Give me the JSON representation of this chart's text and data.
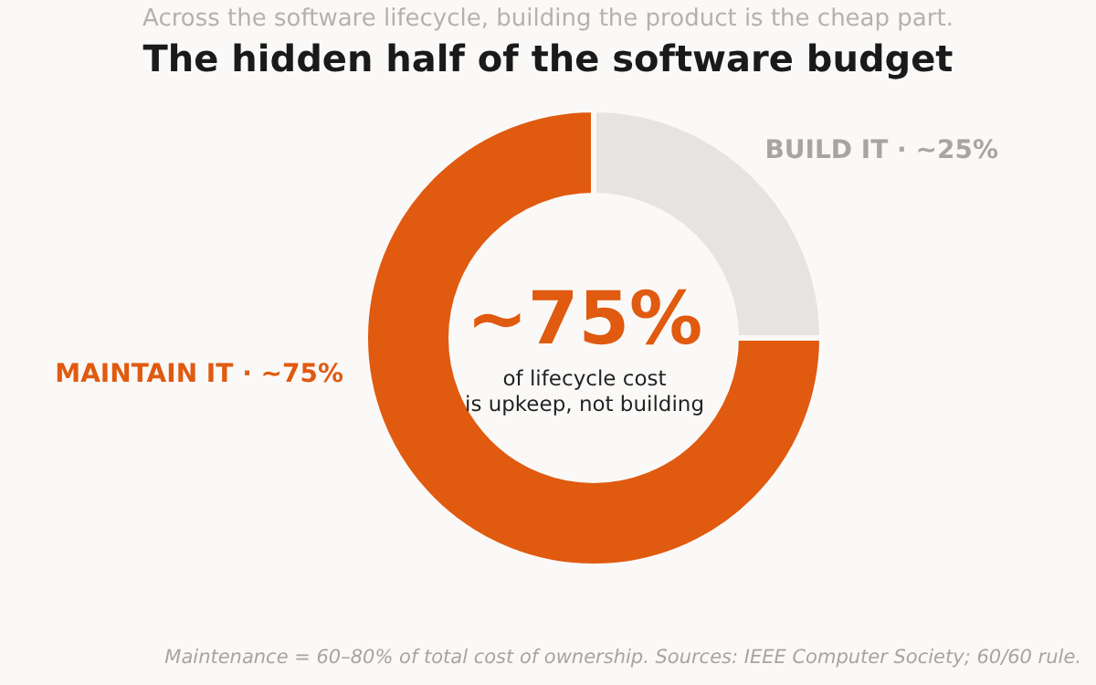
{
  "chart_data": {
    "type": "donut",
    "title": "The hidden half of the software budget",
    "subtitle": "Across the software lifecycle, building the product is the cheap part.",
    "categories": [
      "BUILD IT  ·",
      "MAINTAIN IT  ·"
    ],
    "values": [
      25,
      75
    ],
    "colors": [
      "#e6e4e1",
      "#e05a10"
    ],
    "value_labels": [
      "~25%",
      "~75%"
    ],
    "annotations": [
      "~75%",
      "of lifecycle cost\nis upkeep, not building",
      "Maintenance = 60–80% of total cost of ownership. Sources: IEEE Computer Society; 60/60 rule."
    ]
  }
}
